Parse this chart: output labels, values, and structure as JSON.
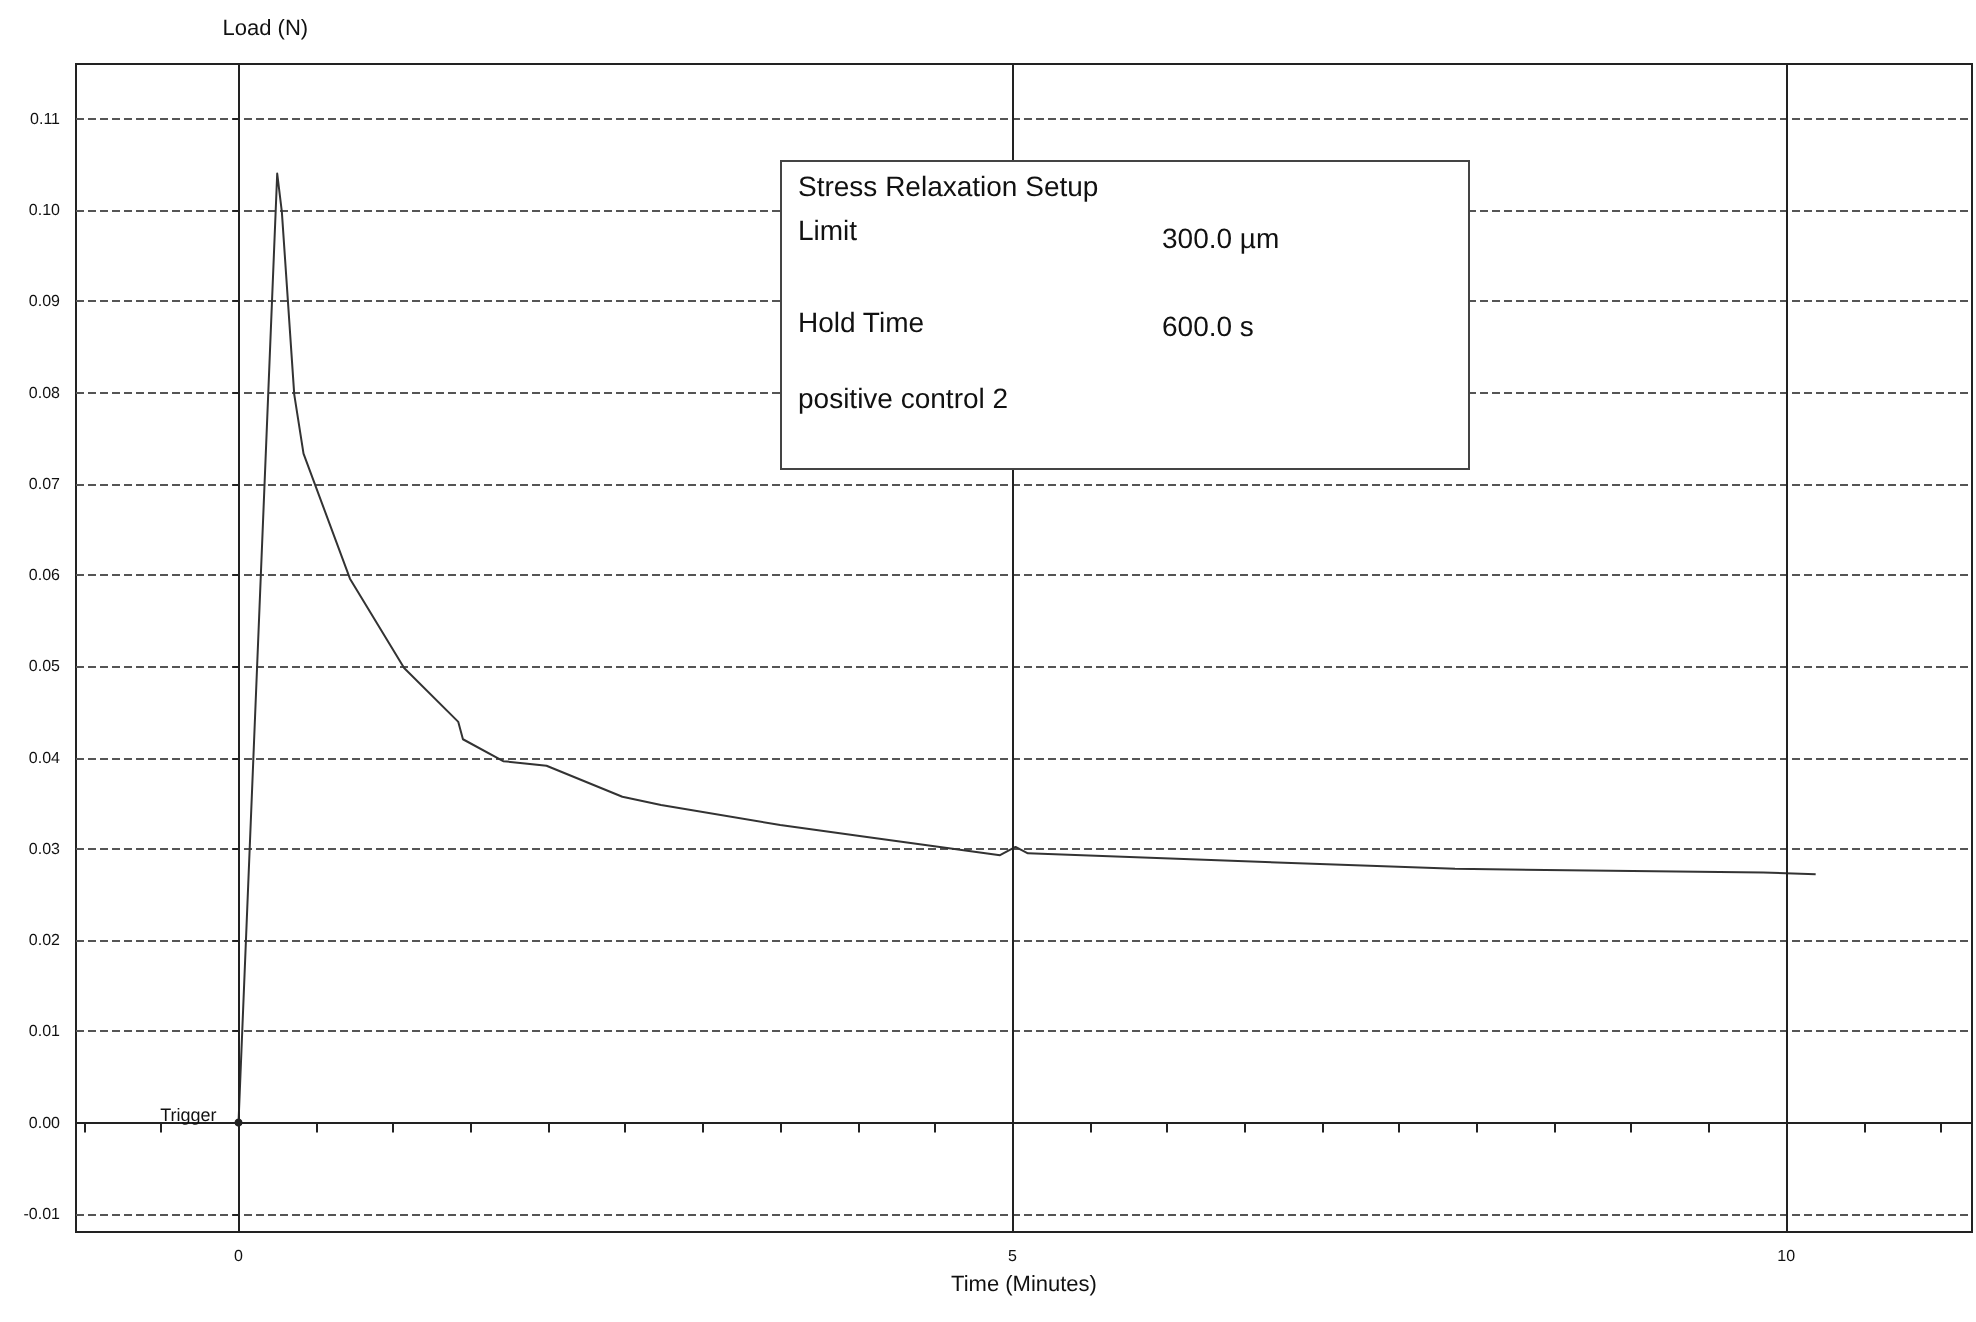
{
  "chart_data": {
    "type": "line",
    "xlabel": "Time (Minutes)",
    "ylabel": "Load (N)",
    "xlim": [
      -1.05,
      11.2
    ],
    "xticks": [
      {
        "value": -1,
        "label": null
      },
      {
        "value": -0.5,
        "label": null
      },
      0,
      {
        "value": 0.5,
        "label": null
      },
      {
        "value": 1,
        "label": null
      },
      {
        "value": 1.5,
        "label": null
      },
      {
        "value": 2,
        "label": null
      },
      {
        "value": 2.5,
        "label": null
      },
      {
        "value": 3,
        "label": null
      },
      {
        "value": 3.5,
        "label": null
      },
      {
        "value": 4,
        "label": null
      },
      {
        "value": 4.5,
        "label": null
      },
      5,
      {
        "value": 5.5,
        "label": null
      },
      {
        "value": 6,
        "label": null
      },
      {
        "value": 6.5,
        "label": null
      },
      {
        "value": 7,
        "label": null
      },
      {
        "value": 7.5,
        "label": null
      },
      {
        "value": 8,
        "label": null
      },
      {
        "value": 8.5,
        "label": null
      },
      {
        "value": 9,
        "label": null
      },
      {
        "value": 9.5,
        "label": null
      },
      10,
      {
        "value": 10.5,
        "label": null
      },
      {
        "value": 11,
        "label": null
      }
    ],
    "ylim": [
      -0.012,
      0.116
    ],
    "yticks": [
      {
        "value": -0.01,
        "label": "-0.01"
      },
      {
        "value": 0,
        "label": "0.00"
      },
      {
        "value": 0.01,
        "label": "0.01"
      },
      {
        "value": 0.02,
        "label": "0.02"
      },
      {
        "value": 0.03,
        "label": "0.03"
      },
      {
        "value": 0.04,
        "label": "0.04"
      },
      {
        "value": 0.05,
        "label": "0.05"
      },
      {
        "value": 0.06,
        "label": "0.06"
      },
      {
        "value": 0.07,
        "label": "0.07"
      },
      {
        "value": 0.08,
        "label": "0.08"
      },
      {
        "value": 0.09,
        "label": "0.09"
      },
      {
        "value": 0.1,
        "label": "0.10"
      },
      {
        "value": 0.11,
        "label": "0.11"
      }
    ],
    "x": [
      0,
      0.25,
      0.28,
      0.36,
      0.42,
      0.72,
      1.07,
      1.42,
      1.45,
      1.71,
      1.99,
      2.48,
      2.73,
      3.5,
      4.06,
      4.92,
      5.02,
      5.1,
      6.37,
      7.86,
      9.85,
      10.19
    ],
    "series": [
      {
        "color": "#333333",
        "values": [
          0,
          0.104,
          0.0998,
          0.0798,
          0.0733,
          0.0596,
          0.0498,
          0.0439,
          0.042,
          0.0396,
          0.0391,
          0.0357,
          0.0348,
          0.0326,
          0.0313,
          0.0293,
          0.0302,
          0.0295,
          0.0287,
          0.0278,
          0.0274,
          0.0272
        ]
      }
    ],
    "annotations": [
      {
        "text": "Trigger",
        "x": 0,
        "y": 0
      },
      "Stress Relaxation Setup",
      "Limit",
      "300.0 µm",
      "Hold Time",
      "600.0 s",
      "positive control 2"
    ],
    "grid": true,
    "marker": "none",
    "line_style": "solid"
  }
}
